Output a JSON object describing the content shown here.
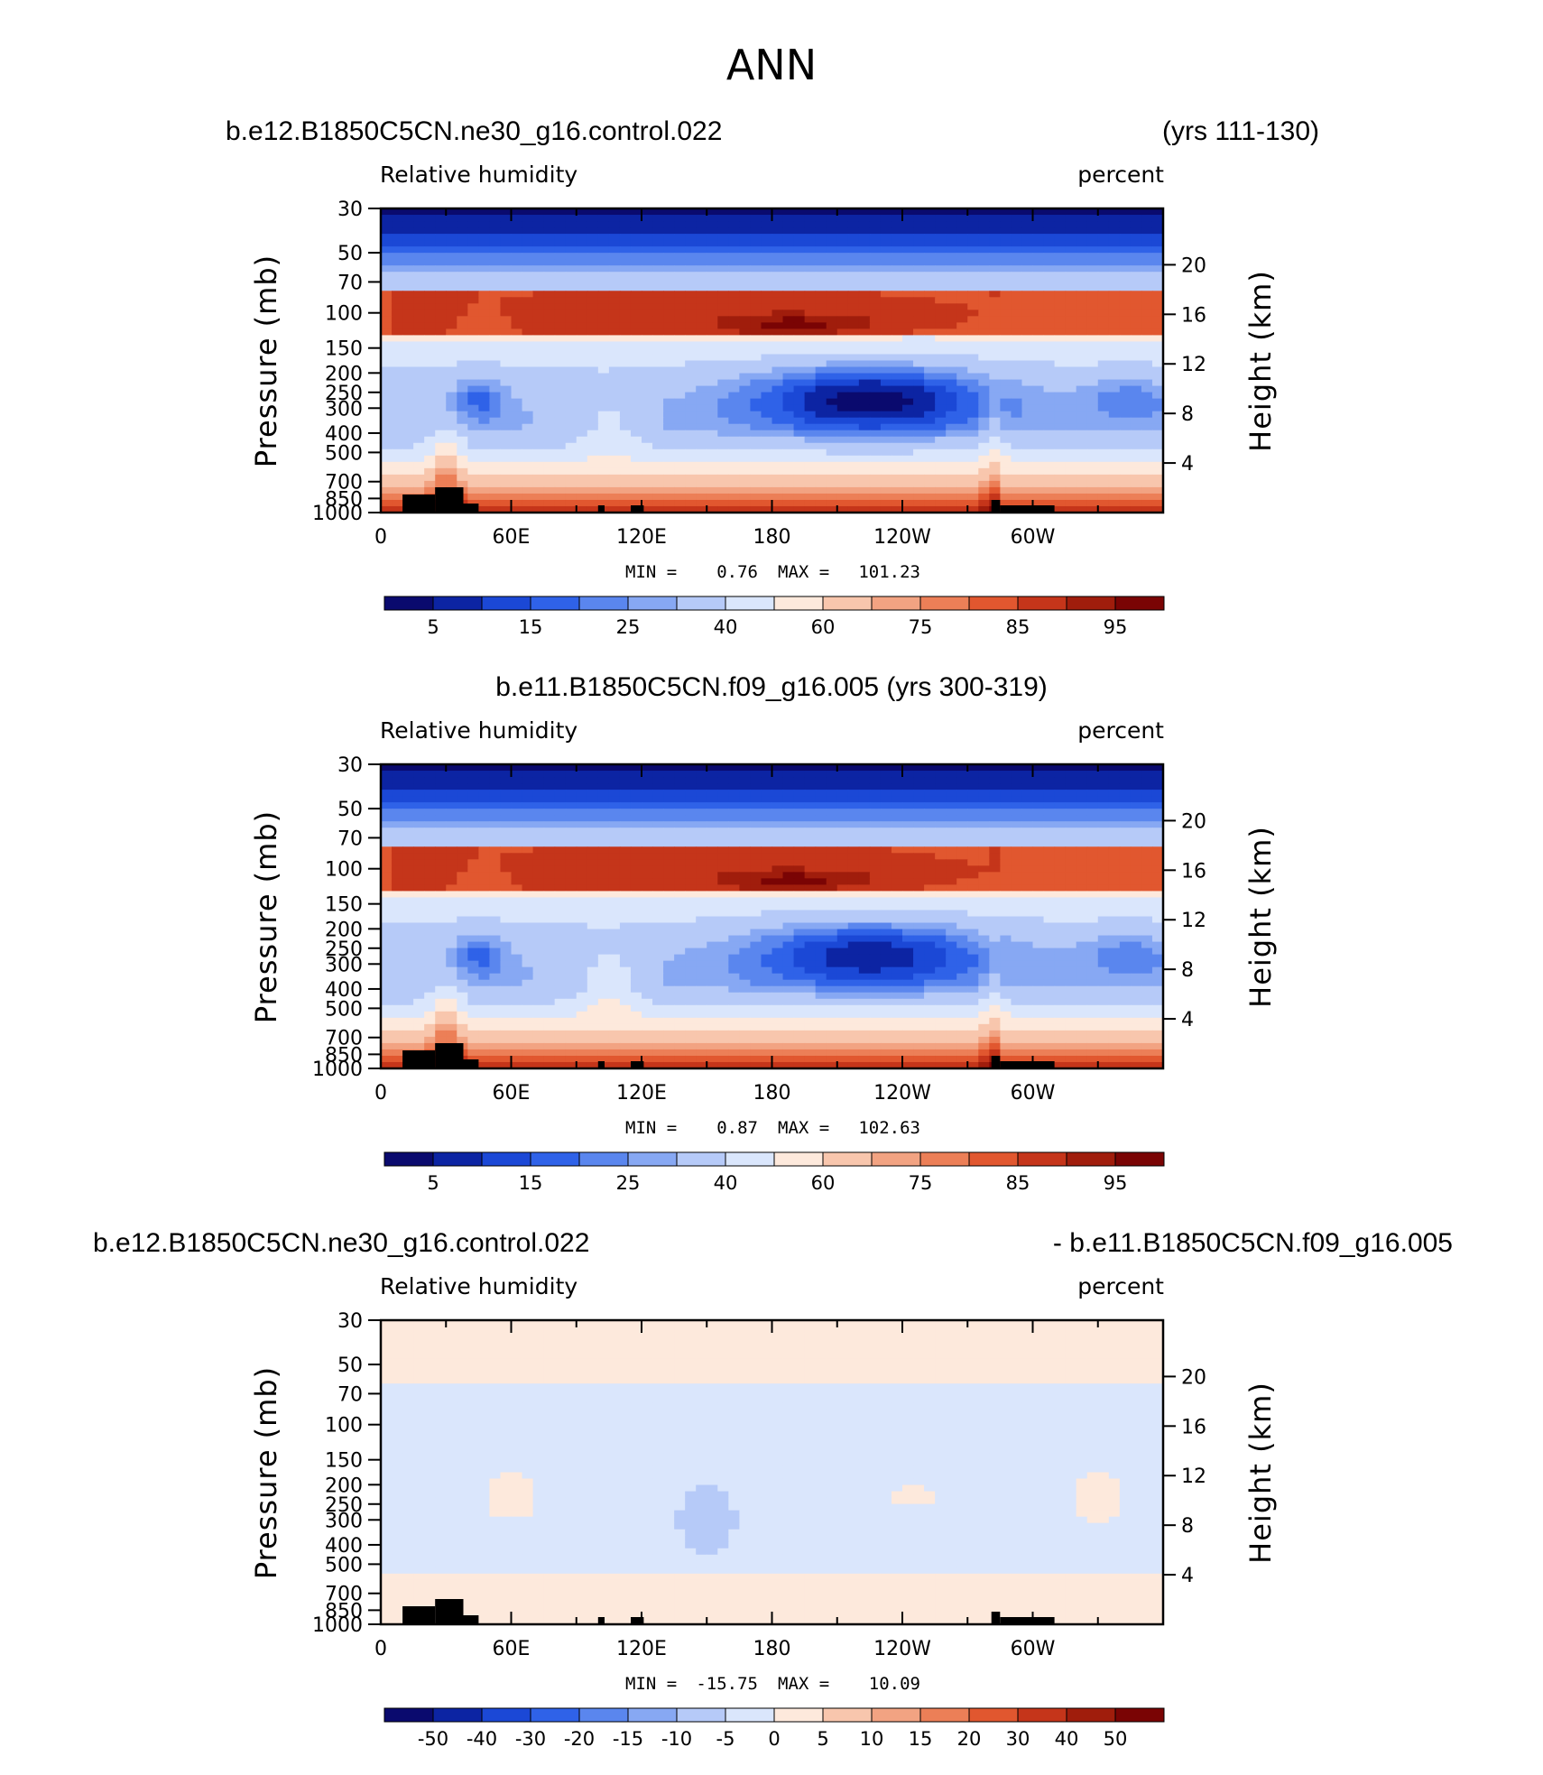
{
  "figure": {
    "title": "ANN"
  },
  "palette": {
    "rh": [
      "#0a0a6e",
      "#0c24a3",
      "#1b48d6",
      "#2f62e8",
      "#5a86ee",
      "#87a8f3",
      "#b6caf8",
      "#dae6fc",
      "#fde9dc",
      "#f8c6ad",
      "#f2a382",
      "#ec7f57",
      "#e1572f",
      "#c5351a",
      "#a01d0c",
      "#7a0404"
    ],
    "diff": [
      "#0a0a6e",
      "#0c24a3",
      "#1b48d6",
      "#2f62e8",
      "#5a86ee",
      "#87a8f3",
      "#b6caf8",
      "#dae6fc",
      "#fde9dc",
      "#f8c6ad",
      "#f2a382",
      "#ec7f57",
      "#e1572f",
      "#c5351a",
      "#a01d0c",
      "#7a0404"
    ]
  },
  "panels": [
    {
      "case_left": "b.e12.B1850C5CN.ne30_g16.control.022",
      "case_right": "(yrs 111-130)",
      "case_center": "",
      "var_label": "Relative humidity",
      "units": "percent",
      "ylabel": "Pressure (mb)",
      "y2label": "Height (km)",
      "min_label": "MIN =",
      "min_value": "0.76",
      "max_label": "MAX =",
      "max_value": "101.23",
      "cb_labels": [
        "5",
        "15",
        "25",
        "40",
        "60",
        "75",
        "85",
        "95"
      ]
    },
    {
      "case_left": "",
      "case_right": "",
      "case_center": "b.e11.B1850C5CN.f09_g16.005 (yrs 300-319)",
      "var_label": "Relative humidity",
      "units": "percent",
      "ylabel": "Pressure (mb)",
      "y2label": "Height (km)",
      "min_label": "MIN =",
      "min_value": "0.87",
      "max_label": "MAX =",
      "max_value": "102.63",
      "cb_labels": [
        "5",
        "15",
        "25",
        "40",
        "60",
        "75",
        "85",
        "95"
      ]
    },
    {
      "case_left": "b.e12.B1850C5CN.ne30_g16.control.022",
      "case_right": "- b.e11.B1850C5CN.f09_g16.005",
      "case_center": "",
      "var_label": "Relative humidity",
      "units": "percent",
      "ylabel": "Pressure (mb)",
      "y2label": "Height (km)",
      "min_label": "MIN =",
      "min_value": "-15.75",
      "max_label": "MAX =",
      "max_value": "10.09",
      "cb_labels": [
        "-50",
        "-40",
        "-30",
        "-20",
        "-15",
        "-10",
        "-5",
        "0",
        "5",
        "10",
        "15",
        "20",
        "30",
        "40",
        "50"
      ]
    }
  ],
  "chart_data": [
    {
      "type": "heatmap",
      "title": "ANN",
      "subtitle": "b.e12.B1850C5CN.ne30_g16.control.022 (yrs 111-130)",
      "xlabel": "",
      "ylabel": "Pressure (mb)",
      "y2label": "Height (km)",
      "xlim": [
        0,
        360
      ],
      "x_ticks": [
        "0",
        "60E",
        "120E",
        "180",
        "120W",
        "60W"
      ],
      "y_ticks": [
        "30",
        "50",
        "70",
        "100",
        "150",
        "200",
        "250",
        "300",
        "400",
        "500",
        "700",
        "850",
        "1000"
      ],
      "y2_ticks": [
        "20",
        "16",
        "12",
        "8",
        "4"
      ],
      "y_scale": "log",
      "levels": [
        5,
        10,
        15,
        20,
        25,
        30,
        40,
        50,
        60,
        70,
        75,
        80,
        85,
        90,
        95
      ],
      "min": 0.76,
      "max": 101.23
    },
    {
      "type": "heatmap",
      "title": "",
      "subtitle": "b.e11.B1850C5CN.f09_g16.005 (yrs 300-319)",
      "xlabel": "",
      "ylabel": "Pressure (mb)",
      "y2label": "Height (km)",
      "xlim": [
        0,
        360
      ],
      "x_ticks": [
        "0",
        "60E",
        "120E",
        "180",
        "120W",
        "60W"
      ],
      "y_ticks": [
        "30",
        "50",
        "70",
        "100",
        "150",
        "200",
        "250",
        "300",
        "400",
        "500",
        "700",
        "850",
        "1000"
      ],
      "y2_ticks": [
        "20",
        "16",
        "12",
        "8",
        "4"
      ],
      "y_scale": "log",
      "levels": [
        5,
        10,
        15,
        20,
        25,
        30,
        40,
        50,
        60,
        70,
        75,
        80,
        85,
        90,
        95
      ],
      "min": 0.87,
      "max": 102.63
    },
    {
      "type": "heatmap",
      "title": "",
      "subtitle": "b.e12.B1850C5CN.ne30_g16.control.022 - b.e11.B1850C5CN.f09_g16.005",
      "xlabel": "",
      "ylabel": "Pressure (mb)",
      "y2label": "Height (km)",
      "xlim": [
        0,
        360
      ],
      "x_ticks": [
        "0",
        "60E",
        "120E",
        "180",
        "120W",
        "60W"
      ],
      "y_ticks": [
        "30",
        "50",
        "70",
        "100",
        "150",
        "200",
        "250",
        "300",
        "400",
        "500",
        "700",
        "850",
        "1000"
      ],
      "y2_ticks": [
        "20",
        "16",
        "12",
        "8",
        "4"
      ],
      "y_scale": "log",
      "levels": [
        -50,
        -40,
        -30,
        -20,
        -15,
        -10,
        -5,
        0,
        5,
        10,
        15,
        20,
        30,
        40,
        50
      ],
      "min": -15.75,
      "max": 10.09
    }
  ]
}
